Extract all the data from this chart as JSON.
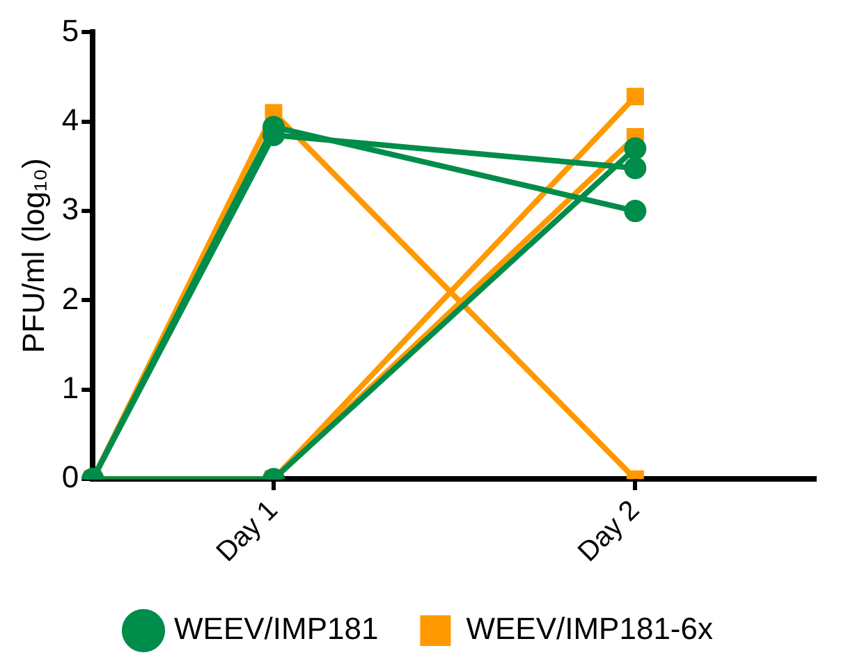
{
  "chart_data": {
    "type": "line",
    "ylabel": "PFU/ml (log₁₀)",
    "categories": [
      null,
      "Day 1",
      null,
      "Day 2",
      null
    ],
    "ylim": [
      0,
      5
    ],
    "yticks": [
      0,
      1,
      2,
      3,
      4,
      5
    ],
    "grid": false,
    "legend": "bottom",
    "line_style": "solid",
    "series": [
      {
        "name": "WEEV/IMP181",
        "color": "#008c4a",
        "marker": "circle",
        "values": [
          0,
          3.94,
          null,
          3.0,
          null
        ]
      },
      {
        "color": "#008c4a",
        "marker": "circle",
        "values": [
          0,
          3.85,
          null,
          3.48,
          null
        ]
      },
      {
        "color": "#008c4a",
        "marker": "circle",
        "values": [
          0,
          0,
          null,
          3.7,
          null
        ]
      },
      {
        "name": "WEEV/IMP181-6x",
        "color": "#ff9900",
        "marker": "square",
        "values": [
          0,
          4.1,
          null,
          0,
          null
        ]
      },
      {
        "color": "#ff9900",
        "marker": "square",
        "values": [
          0,
          0,
          null,
          4.28,
          null
        ]
      },
      {
        "color": "#ff9900",
        "marker": "square",
        "values": [
          0,
          0,
          null,
          3.83,
          null
        ]
      }
    ]
  }
}
